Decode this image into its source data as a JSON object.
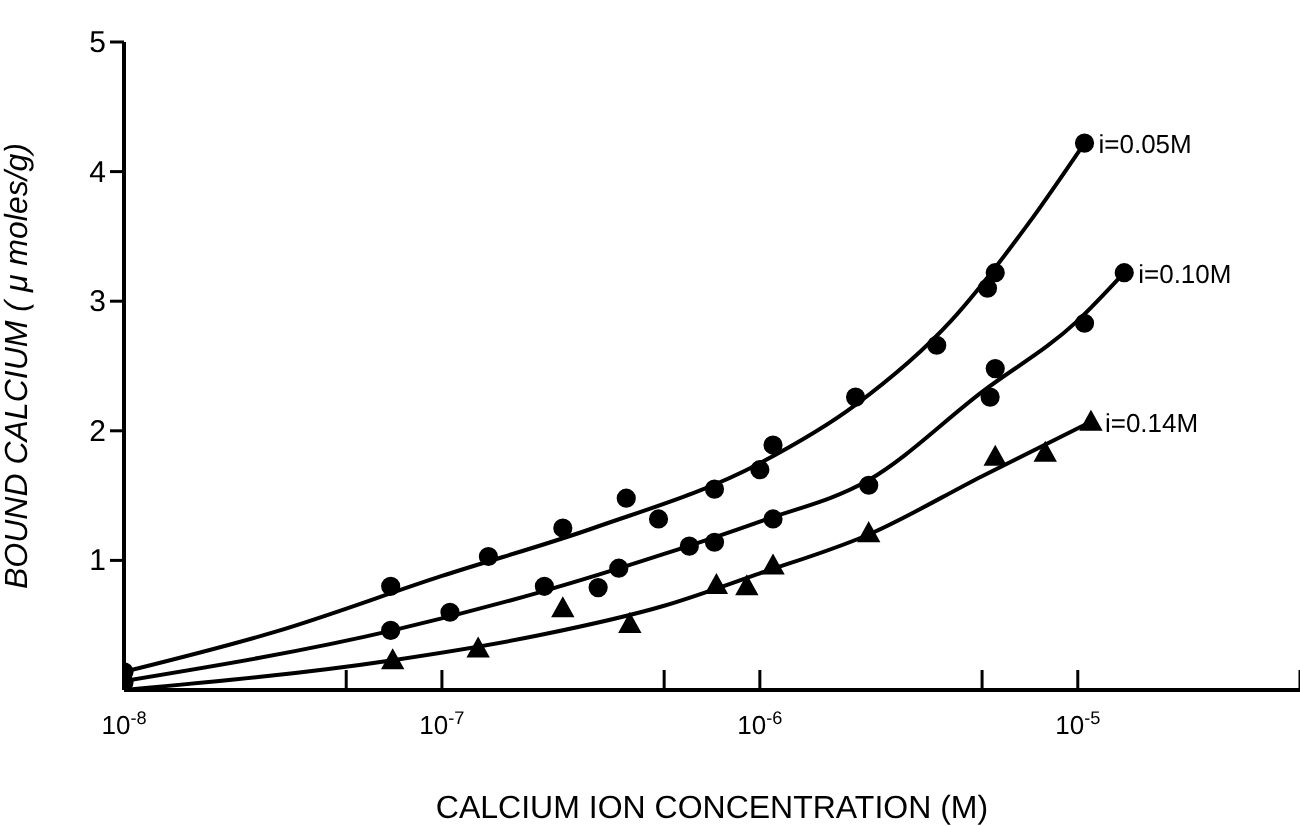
{
  "chart_data": {
    "type": "scatter",
    "xlabel": "CALCIUM ION CONCENTRATION (M)",
    "ylabel": "BOUND CALCIUM ( μ moles/g)",
    "log": "x",
    "xlim": [
      1e-08,
      5e-05
    ],
    "ylim": [
      0,
      5
    ],
    "xticks": [
      {
        "value": 1e-08,
        "label": "10$^{-8}$"
      },
      {
        "value": 5e-08,
        "label": null
      },
      {
        "value": 1e-07,
        "label": "10$^{-7}$"
      },
      {
        "value": 5e-07,
        "label": null
      },
      {
        "value": 1e-06,
        "label": "10$^{-6}$"
      },
      {
        "value": 5e-06,
        "label": null
      },
      {
        "value": 1e-05,
        "label": "10$^{-5}$"
      },
      {
        "value": 5e-05,
        "label": null
      }
    ],
    "yticks": [
      1,
      2,
      3,
      4,
      5
    ],
    "grid": false,
    "legend": false,
    "series": [
      {
        "name": "i=0.05M",
        "marker": "circle",
        "color": "#000000",
        "x": [
          1e-08,
          6.9e-08,
          1.4e-07,
          2.4e-07,
          3.8e-07,
          4.8e-07,
          7.2e-07,
          1e-06,
          1.1e-06,
          2e-06,
          3.6e-06,
          5.2e-06,
          5.5e-06,
          1.05e-05
        ],
        "values": [
          0.14,
          0.8,
          1.03,
          1.25,
          1.48,
          1.32,
          1.55,
          1.7,
          1.89,
          2.26,
          2.66,
          3.1,
          3.22,
          4.22
        ]
      },
      {
        "name": "i=0.10M",
        "marker": "circle",
        "color": "#000000",
        "x": [
          1e-08,
          6.9e-08,
          1.06e-07,
          2.1e-07,
          3.1e-07,
          3.6e-07,
          6e-07,
          7.2e-07,
          1.1e-06,
          2.2e-06,
          5.3e-06,
          5.5e-06,
          1.05e-05,
          1.4e-05
        ],
        "values": [
          0.06,
          0.46,
          0.6,
          0.8,
          0.79,
          0.94,
          1.11,
          1.14,
          1.32,
          1.58,
          2.26,
          2.48,
          2.83,
          3.22
        ]
      },
      {
        "name": "i=0.14M",
        "marker": "triangle",
        "color": "#000000",
        "x": [
          7e-08,
          1.3e-07,
          2.4e-07,
          3.9e-07,
          7.3e-07,
          9.1e-07,
          1.1e-06,
          2.2e-06,
          5.5e-06,
          7.9e-06,
          1.1e-05
        ],
        "values": [
          0.23,
          0.32,
          0.63,
          0.51,
          0.81,
          0.8,
          0.96,
          1.21,
          1.8,
          1.83,
          2.07
        ]
      },
      {
        "type": "line",
        "marker": "none",
        "line_style": "solid",
        "color": "#000000",
        "x": [
          1e-08,
          3e-08,
          1e-07,
          3e-07,
          1e-06,
          2e-06,
          4e-06,
          7e-06,
          1.05e-05
        ],
        "values": [
          0.14,
          0.45,
          0.88,
          1.25,
          1.75,
          2.2,
          2.85,
          3.6,
          4.22
        ]
      },
      {
        "type": "line",
        "marker": "none",
        "line_style": "solid",
        "color": "#000000",
        "x": [
          1e-08,
          7e-08,
          2e-07,
          5e-07,
          1e-06,
          2.2e-06,
          5e-06,
          1e-05,
          1.4e-05
        ],
        "values": [
          0.07,
          0.46,
          0.75,
          1.05,
          1.3,
          1.62,
          2.3,
          2.85,
          3.22
        ]
      },
      {
        "type": "line",
        "marker": "none",
        "line_style": "solid",
        "color": "#000000",
        "x": [
          1e-08,
          7e-08,
          2e-07,
          5e-07,
          1e-06,
          2.2e-06,
          5e-06,
          1.1e-05
        ],
        "values": [
          0,
          0.23,
          0.42,
          0.65,
          0.9,
          1.2,
          1.65,
          2.07
        ]
      }
    ]
  }
}
